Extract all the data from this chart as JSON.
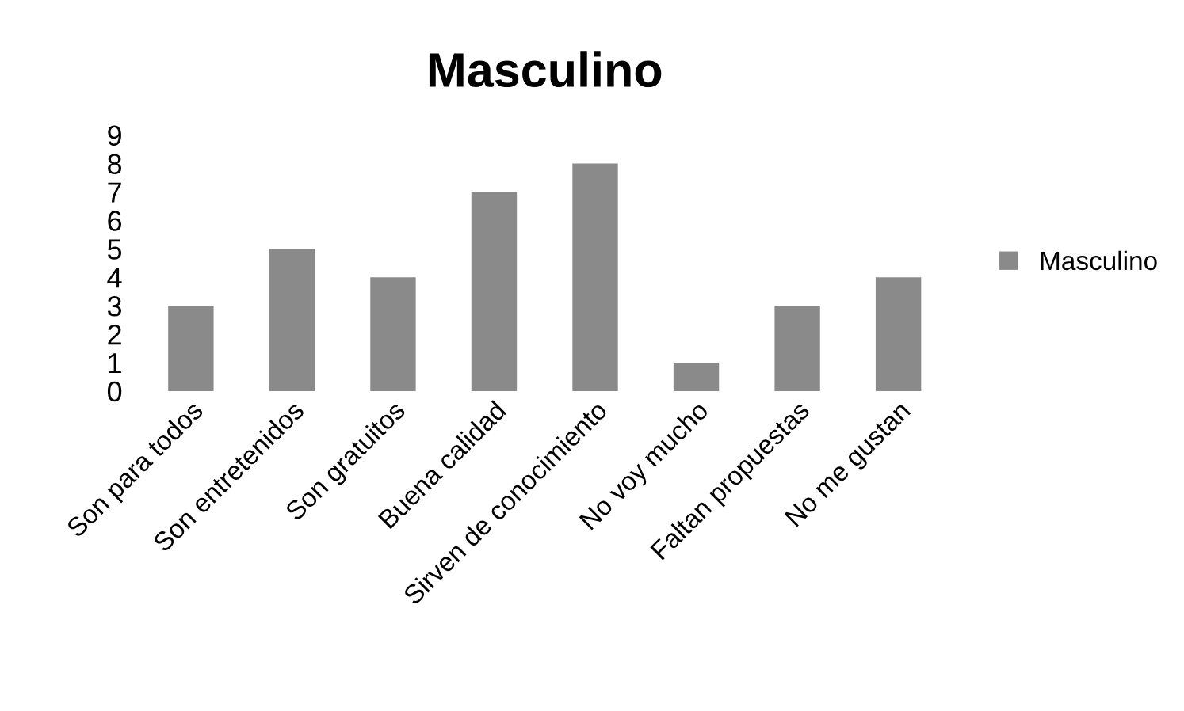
{
  "chart_data": {
    "type": "bar",
    "title": "Masculino",
    "categories": [
      "Son para todos",
      "Son entretenidos",
      "Son gratuitos",
      "Buena calidad",
      "Sirven de conocimiento",
      "No voy mucho",
      "Faltan propuestas",
      "No me gustan"
    ],
    "series": [
      {
        "name": "Masculino",
        "color": "#8a8a8a",
        "values": [
          3,
          5,
          4,
          7,
          8,
          1,
          3,
          4
        ]
      }
    ],
    "ylim": [
      0,
      9
    ],
    "yticks": [
      0,
      1,
      2,
      3,
      4,
      5,
      6,
      7,
      8,
      9
    ],
    "grid": false,
    "legend": "right"
  }
}
